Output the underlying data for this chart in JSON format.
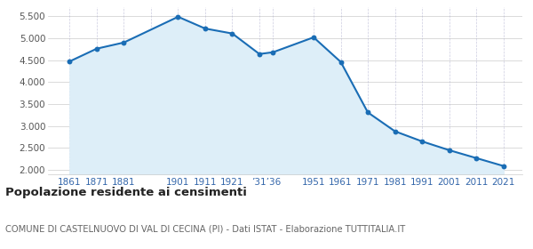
{
  "years": [
    1861,
    1871,
    1881,
    1901,
    1911,
    1921,
    1931,
    1936,
    1951,
    1961,
    1971,
    1981,
    1991,
    2001,
    2011,
    2021
  ],
  "population": [
    4472,
    4762,
    4902,
    5488,
    5220,
    5107,
    4640,
    4680,
    5020,
    4460,
    3310,
    2880,
    2650,
    2450,
    2270,
    2090
  ],
  "line_color": "#1a6db5",
  "fill_color": "#ddeef8",
  "marker_color": "#1a6db5",
  "background_color": "#ffffff",
  "grid_color_h": "#cccccc",
  "grid_color_v": "#aaaacc",
  "title": "Popolazione residente ai censimenti",
  "subtitle": "COMUNE DI CASTELNUOVO DI VAL DI CECINA (PI) - Dati ISTAT - Elaborazione TUTTITALIA.IT",
  "yticks": [
    2000,
    2500,
    3000,
    3500,
    4000,
    4500,
    5000,
    5500
  ],
  "ylim": [
    1900,
    5700
  ],
  "xlim_left": 1853,
  "xlim_right": 2028,
  "x_tick_positions": [
    1861,
    1871,
    1881,
    1901,
    1911,
    1921,
    1933.5,
    1951,
    1961,
    1971,
    1981,
    1991,
    2001,
    2011,
    2021
  ],
  "x_tick_labels": [
    "1861",
    "1871",
    "1881",
    "1901",
    "1911",
    "1921",
    "’31’36",
    "1951",
    "1961",
    "1971",
    "1981",
    "1991",
    "2001",
    "2011",
    "2021"
  ],
  "x_grid_positions": [
    1861,
    1871,
    1881,
    1891,
    1901,
    1911,
    1921,
    1931,
    1936,
    1951,
    1961,
    1971,
    1981,
    1991,
    2001,
    2011,
    2021
  ],
  "tick_label_color": "#3366aa",
  "y_label_color": "#555555",
  "title_color": "#222222",
  "subtitle_color": "#666666"
}
